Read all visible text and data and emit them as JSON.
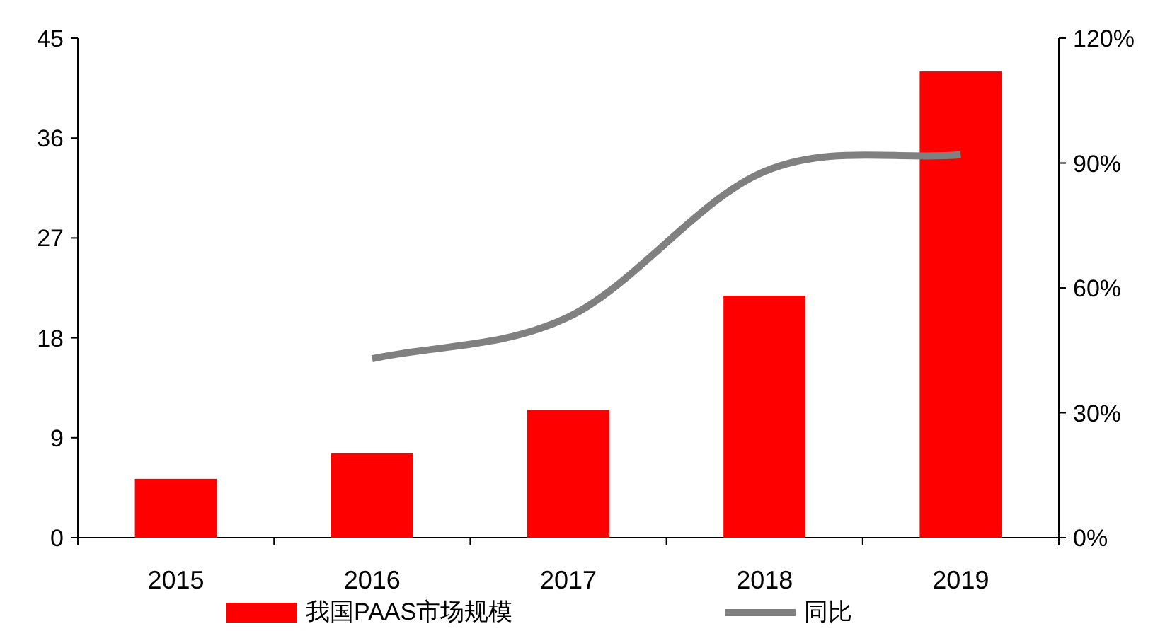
{
  "chart_data": {
    "type": "bar",
    "categories": [
      "2015",
      "2016",
      "2017",
      "2018",
      "2019"
    ],
    "series": [
      {
        "name": "我国PAAS市场规模",
        "color": "#ff0000",
        "values": [
          5.3,
          7.6,
          11.5,
          21.8,
          42.0
        ]
      },
      {
        "name": "同比",
        "type": "line",
        "axis": "y2",
        "color": "#808080",
        "values": [
          null,
          43,
          53,
          88,
          92
        ]
      }
    ],
    "ylim": [
      0,
      45
    ],
    "yticks": [
      0,
      9,
      18,
      27,
      36,
      45
    ],
    "y2lim": [
      0,
      120
    ],
    "y2ticks": [
      {
        "value": 0,
        "label": "0%"
      },
      {
        "value": 30,
        "label": "30%"
      },
      {
        "value": 60,
        "label": "60%"
      },
      {
        "value": 90,
        "label": "90%"
      },
      {
        "value": 120,
        "label": "120%"
      }
    ],
    "legend": "bottom",
    "grid": false
  }
}
